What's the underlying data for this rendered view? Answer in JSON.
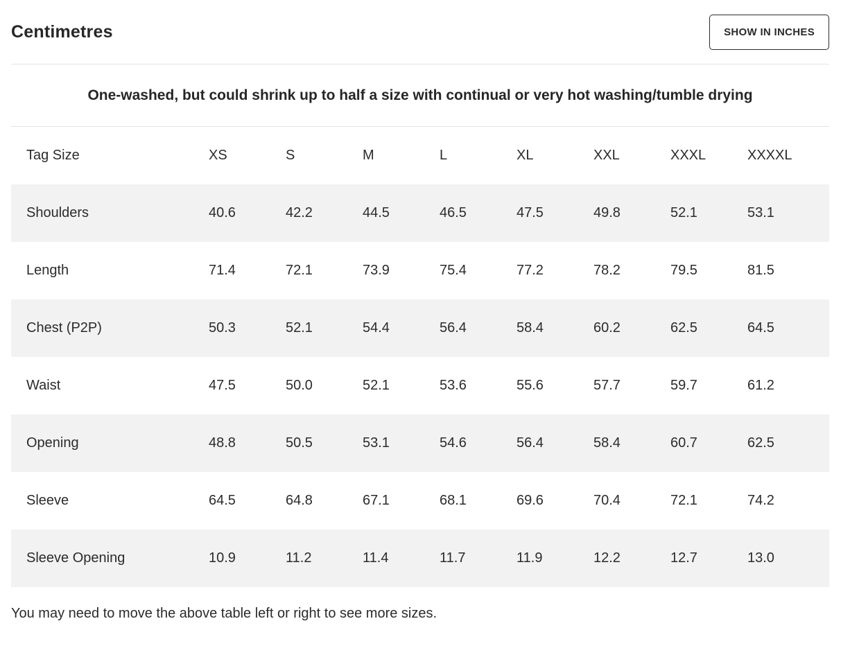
{
  "header": {
    "title": "Centimetres",
    "toggle_button_label": "SHOW IN INCHES"
  },
  "notice": "One-washed, but could shrink up to half a size with continual or very hot washing/tumble drying",
  "table": {
    "columns": [
      "Tag Size",
      "XS",
      "S",
      "M",
      "L",
      "XL",
      "XXL",
      "XXXL",
      "XXXXL"
    ],
    "rows": [
      {
        "label": "Shoulders",
        "values": [
          "40.6",
          "42.2",
          "44.5",
          "46.5",
          "47.5",
          "49.8",
          "52.1",
          "53.1"
        ]
      },
      {
        "label": "Length",
        "values": [
          "71.4",
          "72.1",
          "73.9",
          "75.4",
          "77.2",
          "78.2",
          "79.5",
          "81.5"
        ]
      },
      {
        "label": "Chest (P2P)",
        "values": [
          "50.3",
          "52.1",
          "54.4",
          "56.4",
          "58.4",
          "60.2",
          "62.5",
          "64.5"
        ]
      },
      {
        "label": "Waist",
        "values": [
          "47.5",
          "50.0",
          "52.1",
          "53.6",
          "55.6",
          "57.7",
          "59.7",
          "61.2"
        ]
      },
      {
        "label": "Opening",
        "values": [
          "48.8",
          "50.5",
          "53.1",
          "54.6",
          "56.4",
          "58.4",
          "60.7",
          "62.5"
        ]
      },
      {
        "label": "Sleeve",
        "values": [
          "64.5",
          "64.8",
          "67.1",
          "68.1",
          "69.6",
          "70.4",
          "72.1",
          "74.2"
        ]
      },
      {
        "label": "Sleeve Opening",
        "values": [
          "10.9",
          "11.2",
          "11.4",
          "11.7",
          "11.9",
          "12.2",
          "12.7",
          "13.0"
        ]
      }
    ]
  },
  "footer_note": "You may need to move the above table left or right to see more sizes.",
  "colors": {
    "text": "#2b2b2b",
    "row_alt_bg": "#f2f2f2",
    "divider": "#e3e3e3",
    "button_border": "#2b2b2b",
    "background": "#ffffff"
  }
}
